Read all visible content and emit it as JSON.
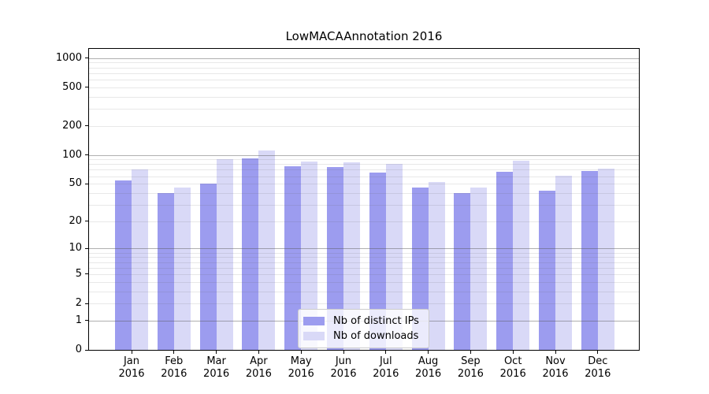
{
  "chart_data": {
    "type": "bar",
    "title": "LowMACAAnnotation 2016",
    "scale": "log1p",
    "categories": [
      "Jan",
      "Feb",
      "Mar",
      "Apr",
      "May",
      "Jun",
      "Jul",
      "Aug",
      "Sep",
      "Oct",
      "Nov",
      "Dec"
    ],
    "year_label": "2016",
    "series": [
      {
        "name": "Nb of distinct IPs",
        "color": "#9c9cef",
        "values": [
          54,
          40,
          50,
          92,
          76,
          75,
          65,
          46,
          40,
          67,
          42,
          68
        ]
      },
      {
        "name": "Nb of downloads",
        "color": "#d9d9f7",
        "values": [
          70,
          46,
          90,
          111,
          85,
          84,
          81,
          52,
          46,
          87,
          61,
          72
        ]
      }
    ],
    "yticks": [
      0,
      1,
      2,
      5,
      10,
      20,
      50,
      100,
      200,
      500,
      1000
    ],
    "ylim": [
      0,
      1240
    ],
    "xlabel": "",
    "ylabel": "",
    "grid": {
      "shown": true,
      "major_color": "#b0b0b0",
      "minor_color": "#e9e9e9"
    },
    "legend": {
      "position": "lower-center",
      "background": "#ffffff",
      "border_color": "#cccccc"
    },
    "axis_color": "#000000"
  }
}
